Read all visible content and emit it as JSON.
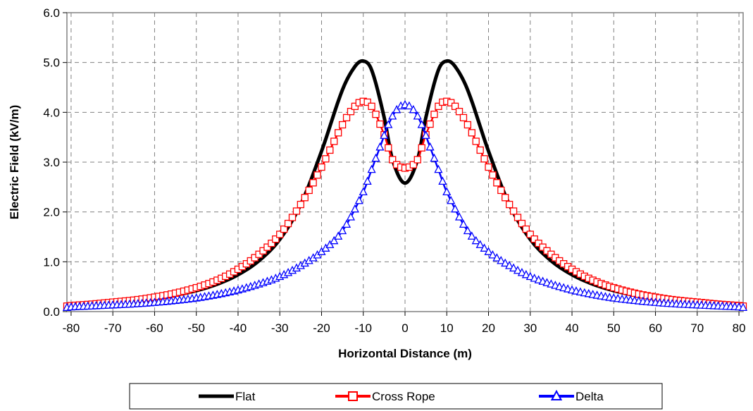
{
  "chart_data": {
    "type": "line",
    "xlabel": "Horizontal Distance (m)",
    "ylabel": "Electric Field (kV/m)",
    "xlim": [
      -81,
      81
    ],
    "ylim": [
      0,
      6
    ],
    "x_ticks": [
      -80,
      -70,
      -60,
      -50,
      -40,
      -30,
      -20,
      -10,
      0,
      10,
      20,
      30,
      40,
      50,
      60,
      70,
      80
    ],
    "x_tick_labels": [
      "-80",
      "-70",
      "-60",
      "-50",
      "-40",
      "-30",
      "-20",
      "-10",
      "0",
      "10",
      "20",
      "30",
      "40",
      "50",
      "60",
      "70",
      "80"
    ],
    "y_ticks": [
      0,
      1,
      2,
      3,
      4,
      5,
      6
    ],
    "y_tick_labels": [
      "0.0",
      "1.0",
      "2.0",
      "3.0",
      "4.0",
      "5.0",
      "6.0"
    ],
    "grid": true,
    "legend_position": "bottom",
    "colors": {
      "plot_border": "#808080",
      "grid": "#808080"
    },
    "series": [
      {
        "name": "Flat",
        "color": "#000000",
        "marker": "none",
        "x": [
          -81,
          -80,
          -75,
          -70,
          -65,
          -60,
          -55,
          -50,
          -45,
          -40,
          -35,
          -30,
          -25,
          -20,
          -15,
          -12,
          -10,
          -8,
          -5,
          -3,
          0,
          3,
          5,
          8,
          10,
          12,
          15,
          20,
          25,
          30,
          35,
          40,
          45,
          50,
          55,
          60,
          65,
          70,
          75,
          80,
          81
        ],
        "y": [
          0.1,
          0.11,
          0.14,
          0.17,
          0.21,
          0.26,
          0.33,
          0.42,
          0.55,
          0.74,
          1.02,
          1.45,
          2.15,
          3.22,
          4.45,
          4.92,
          5.03,
          4.85,
          3.9,
          3.05,
          2.58,
          3.05,
          3.9,
          4.85,
          5.03,
          4.92,
          4.45,
          3.22,
          2.15,
          1.45,
          1.02,
          0.74,
          0.55,
          0.42,
          0.33,
          0.26,
          0.21,
          0.17,
          0.14,
          0.11,
          0.1
        ]
      },
      {
        "name": "Cross Rope",
        "color": "#ff0000",
        "marker": "square",
        "x": [
          -81,
          -80,
          -75,
          -70,
          -65,
          -60,
          -55,
          -50,
          -45,
          -40,
          -35,
          -30,
          -25,
          -20,
          -15,
          -12,
          -10,
          -8,
          -5,
          -3,
          -1,
          0,
          1,
          3,
          5,
          8,
          10,
          12,
          15,
          20,
          25,
          30,
          35,
          40,
          45,
          50,
          55,
          60,
          65,
          70,
          75,
          80,
          81
        ],
        "y": [
          0.11,
          0.12,
          0.15,
          0.19,
          0.23,
          0.29,
          0.37,
          0.48,
          0.63,
          0.85,
          1.15,
          1.55,
          2.15,
          2.9,
          3.75,
          4.12,
          4.22,
          4.12,
          3.55,
          3.05,
          2.9,
          2.88,
          2.9,
          3.05,
          3.55,
          4.12,
          4.22,
          4.12,
          3.75,
          2.9,
          2.15,
          1.55,
          1.15,
          0.85,
          0.63,
          0.48,
          0.37,
          0.29,
          0.23,
          0.19,
          0.15,
          0.12,
          0.11
        ]
      },
      {
        "name": "Delta",
        "color": "#0000ff",
        "marker": "triangle",
        "x": [
          -81,
          -80,
          -75,
          -70,
          -65,
          -60,
          -55,
          -50,
          -45,
          -40,
          -35,
          -30,
          -25,
          -20,
          -15,
          -10,
          -8,
          -6,
          -4,
          -2,
          0,
          2,
          4,
          6,
          8,
          10,
          15,
          20,
          25,
          30,
          35,
          40,
          45,
          50,
          55,
          60,
          65,
          70,
          75,
          80,
          81
        ],
        "y": [
          0.08,
          0.09,
          0.11,
          0.13,
          0.15,
          0.18,
          0.22,
          0.27,
          0.34,
          0.43,
          0.55,
          0.7,
          0.92,
          1.2,
          1.62,
          2.4,
          2.85,
          3.3,
          3.75,
          4.05,
          4.15,
          4.05,
          3.75,
          3.3,
          2.85,
          2.4,
          1.62,
          1.2,
          0.92,
          0.7,
          0.55,
          0.43,
          0.34,
          0.27,
          0.22,
          0.18,
          0.15,
          0.13,
          0.11,
          0.09,
          0.08
        ]
      }
    ]
  }
}
